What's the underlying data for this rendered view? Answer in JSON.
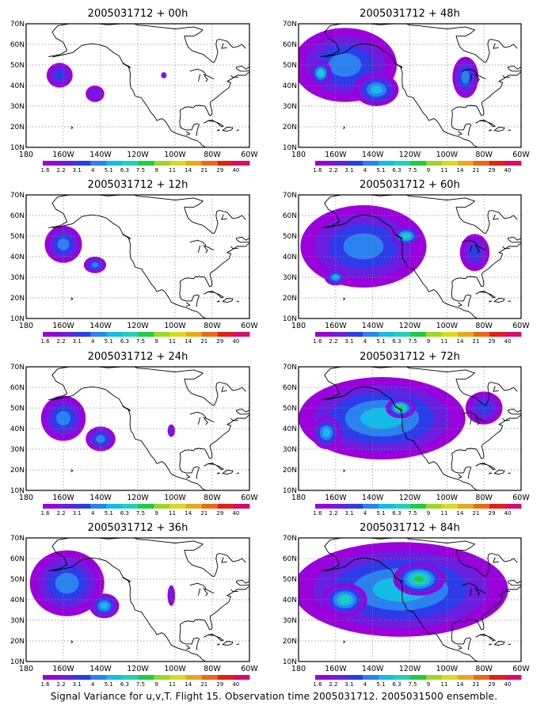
{
  "figure": {
    "caption": "Signal Variance for u,v,T. Flight 15. Observation time 2005031712. 2005031500 ensemble."
  },
  "map": {
    "lat_labels": [
      "70N",
      "60N",
      "50N",
      "40N",
      "30N",
      "20N",
      "10N"
    ],
    "lon_labels": [
      "180",
      "160W",
      "140W",
      "120W",
      "100W",
      "80W",
      "60W"
    ],
    "lat_values": [
      70,
      60,
      50,
      40,
      30,
      20,
      10
    ],
    "lon_values": [
      180,
      160,
      140,
      120,
      100,
      80,
      60
    ]
  },
  "colorbar": {
    "labels": [
      "1.6",
      "2.2",
      "3.1",
      "4",
      "5.1",
      "6.3",
      "7.5",
      "9",
      "11",
      "14",
      "21",
      "29",
      "40"
    ],
    "colors": [
      "#9a00dc",
      "#6a1ee0",
      "#2d3ce8",
      "#2a82f0",
      "#12bce6",
      "#20d2b4",
      "#20cc40",
      "#9ad828",
      "#d8dc1c",
      "#e8a81a",
      "#ea6a14",
      "#e81e14",
      "#d80a6a"
    ]
  },
  "chart_data": [
    {
      "type": "heatmap",
      "title": "2005031712 + 00h",
      "x_range": [
        180,
        60
      ],
      "y_range": [
        10,
        70
      ],
      "blobs": [
        {
          "lon": 162,
          "lat": 45,
          "rx": 7,
          "ry": 6,
          "level": 2
        },
        {
          "lon": 143,
          "lat": 36,
          "rx": 5,
          "ry": 4,
          "level": 1
        },
        {
          "lon": 106,
          "lat": 45,
          "rx": 1.5,
          "ry": 1.5,
          "level": 1
        }
      ]
    },
    {
      "type": "heatmap",
      "title": "2005031712 + 48h",
      "x_range": [
        180,
        60
      ],
      "y_range": [
        10,
        70
      ],
      "blobs": [
        {
          "lon": 155,
          "lat": 50,
          "rx": 28,
          "ry": 18,
          "level": 3
        },
        {
          "lon": 138,
          "lat": 38,
          "rx": 12,
          "ry": 8,
          "level": 4
        },
        {
          "lon": 168,
          "lat": 46,
          "rx": 6,
          "ry": 6,
          "level": 5
        },
        {
          "lon": 90,
          "lat": 44,
          "rx": 7,
          "ry": 10,
          "level": 3
        }
      ]
    },
    {
      "type": "heatmap",
      "title": "2005031712 + 12h",
      "x_range": [
        180,
        60
      ],
      "y_range": [
        10,
        70
      ],
      "blobs": [
        {
          "lon": 160,
          "lat": 46,
          "rx": 10,
          "ry": 9,
          "level": 3
        },
        {
          "lon": 143,
          "lat": 36,
          "rx": 6,
          "ry": 4,
          "level": 3
        }
      ]
    },
    {
      "type": "heatmap",
      "title": "2005031712 + 60h",
      "x_range": [
        180,
        60
      ],
      "y_range": [
        10,
        70
      ],
      "blobs": [
        {
          "lon": 145,
          "lat": 45,
          "rx": 34,
          "ry": 20,
          "level": 3
        },
        {
          "lon": 122,
          "lat": 50,
          "rx": 8,
          "ry": 5,
          "level": 5
        },
        {
          "lon": 160,
          "lat": 30,
          "rx": 6,
          "ry": 4,
          "level": 4
        },
        {
          "lon": 85,
          "lat": 42,
          "rx": 8,
          "ry": 9,
          "level": 2
        }
      ]
    },
    {
      "type": "heatmap",
      "title": "2005031712 + 24h",
      "x_range": [
        180,
        60
      ],
      "y_range": [
        10,
        70
      ],
      "blobs": [
        {
          "lon": 160,
          "lat": 45,
          "rx": 12,
          "ry": 11,
          "level": 3
        },
        {
          "lon": 140,
          "lat": 35,
          "rx": 8,
          "ry": 6,
          "level": 3
        },
        {
          "lon": 102,
          "lat": 39,
          "rx": 2,
          "ry": 3,
          "level": 1
        }
      ]
    },
    {
      "type": "heatmap",
      "title": "2005031712 + 72h",
      "x_range": [
        180,
        60
      ],
      "y_range": [
        10,
        70
      ],
      "blobs": [
        {
          "lon": 135,
          "lat": 45,
          "rx": 45,
          "ry": 20,
          "level": 4
        },
        {
          "lon": 125,
          "lat": 50,
          "rx": 8,
          "ry": 5,
          "level": 6
        },
        {
          "lon": 165,
          "lat": 38,
          "rx": 8,
          "ry": 8,
          "level": 4
        },
        {
          "lon": 80,
          "lat": 50,
          "rx": 10,
          "ry": 8,
          "level": 2
        }
      ]
    },
    {
      "type": "heatmap",
      "title": "2005031712 + 36h",
      "x_range": [
        180,
        60
      ],
      "y_range": [
        10,
        70
      ],
      "blobs": [
        {
          "lon": 158,
          "lat": 48,
          "rx": 20,
          "ry": 16,
          "level": 3
        },
        {
          "lon": 138,
          "lat": 37,
          "rx": 8,
          "ry": 6,
          "level": 4
        },
        {
          "lon": 102,
          "lat": 42,
          "rx": 2,
          "ry": 5,
          "level": 1
        }
      ]
    },
    {
      "type": "heatmap",
      "title": "2005031712 + 84h",
      "x_range": [
        180,
        60
      ],
      "y_range": [
        10,
        70
      ],
      "blobs": [
        {
          "lon": 125,
          "lat": 45,
          "rx": 58,
          "ry": 23,
          "level": 4
        },
        {
          "lon": 115,
          "lat": 50,
          "rx": 14,
          "ry": 8,
          "level": 6
        },
        {
          "lon": 155,
          "lat": 40,
          "rx": 12,
          "ry": 8,
          "level": 5
        }
      ]
    }
  ]
}
